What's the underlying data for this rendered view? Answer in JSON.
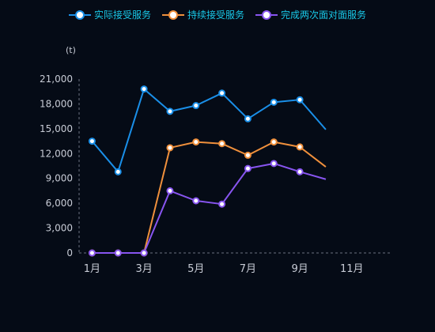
{
  "chart_data": {
    "type": "line",
    "unit": "(t)",
    "x": [
      "1月",
      "2月",
      "3月",
      "4月",
      "5月",
      "6月",
      "7月",
      "8月",
      "9月",
      "10月",
      "11月",
      "12月"
    ],
    "x_tick_labels": [
      "1月",
      "3月",
      "5月",
      "7月",
      "9月",
      "11月"
    ],
    "y_ticks": [
      "0",
      "3,000",
      "6,000",
      "9,000",
      "12,000",
      "15,000",
      "18,000",
      "21,000"
    ],
    "ylim": [
      0,
      21000
    ],
    "grid": false,
    "legend_position": "top-center",
    "series": [
      {
        "name": "实际接受服务",
        "color": "#1a8fe8",
        "values": [
          13500,
          9800,
          19800,
          17100,
          17800,
          19300,
          16200,
          18200,
          18500,
          14900,
          null,
          null
        ],
        "markers": [
          true,
          true,
          true,
          true,
          true,
          true,
          true,
          true,
          true,
          false,
          false,
          false
        ]
      },
      {
        "name": "持续接受服务",
        "color": "#f0903c",
        "values": [
          0,
          0,
          0,
          12700,
          13400,
          13200,
          11800,
          13400,
          12800,
          10400,
          null,
          null
        ],
        "markers": [
          true,
          true,
          true,
          true,
          true,
          true,
          true,
          true,
          true,
          false,
          false,
          false
        ]
      },
      {
        "name": "完成两次面对面服务",
        "color": "#8855f0",
        "values": [
          0,
          0,
          0,
          7500,
          6300,
          5900,
          10200,
          10800,
          9800,
          8900,
          null,
          null
        ],
        "markers": [
          true,
          true,
          true,
          true,
          true,
          true,
          true,
          true,
          true,
          false,
          false,
          false
        ]
      }
    ]
  }
}
